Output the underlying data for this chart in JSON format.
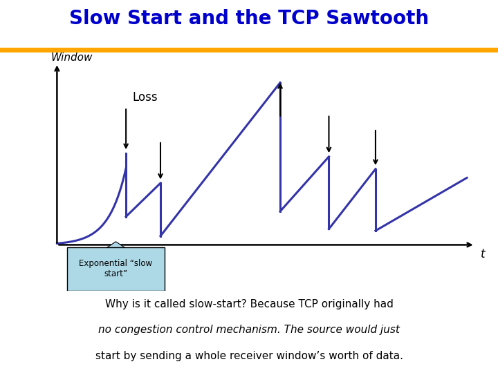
{
  "title": "Slow Start and the TCP Sawtooth",
  "title_color": "#0000CC",
  "title_fontsize": 20,
  "separator_color": "#FFA500",
  "window_label": "Window",
  "t_label": "t",
  "loss_label": "Loss",
  "curve_color": "#3333AA",
  "curve_linewidth": 2.2,
  "box_color": "#ADD8E6",
  "box_text": "Exponential “slow\nstart”",
  "bottom_text_line1": "Why is it called slow-start? Because TCP originally had",
  "bottom_text_line2": "no congestion control mechanism. The source would just",
  "bottom_text_line3": "start by sending a whole receiver window’s worth of data.",
  "background_color": "#FFFFFF"
}
